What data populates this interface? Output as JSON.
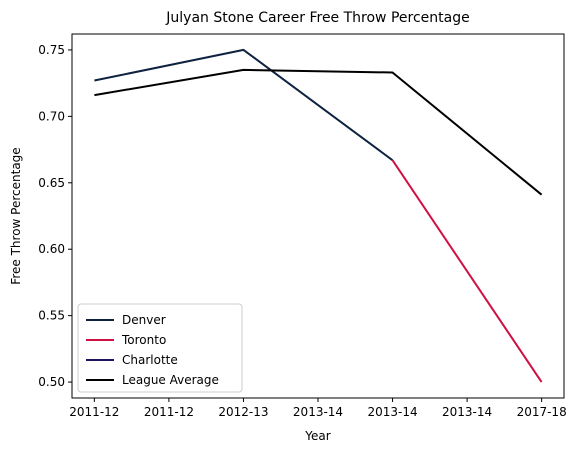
{
  "chart_data": {
    "type": "line",
    "title": "Julyan Stone Career Free Throw Percentage",
    "xlabel": "Year",
    "ylabel": "Free Throw Percentage",
    "x_ticks": [
      "2011-12",
      "2011-12",
      "2012-13",
      "2013-14",
      "2013-14",
      "2013-14",
      "2017-18"
    ],
    "ylim": [
      0.488,
      0.762
    ],
    "y_ticks": [
      0.5,
      0.55,
      0.6,
      0.65,
      0.7,
      0.75
    ],
    "y_tick_labels": [
      "0.50",
      "0.55",
      "0.60",
      "0.65",
      "0.70",
      "0.75"
    ],
    "grid": false,
    "legend_position": "lower-left",
    "series": [
      {
        "name": "Denver",
        "color": "#0e2240",
        "points": [
          [
            0,
            0.727
          ],
          [
            2,
            0.75
          ],
          [
            4,
            0.667
          ]
        ]
      },
      {
        "name": "Toronto",
        "color": "#ce1141",
        "points": [
          [
            4,
            0.667
          ],
          [
            6,
            0.5
          ]
        ]
      },
      {
        "name": "Charlotte",
        "color": "#1d1160",
        "points": []
      },
      {
        "name": "League Average",
        "color": "#000000",
        "points": [
          [
            0,
            0.716
          ],
          [
            2,
            0.735
          ],
          [
            4,
            0.733
          ],
          [
            6,
            0.641
          ]
        ]
      }
    ]
  }
}
